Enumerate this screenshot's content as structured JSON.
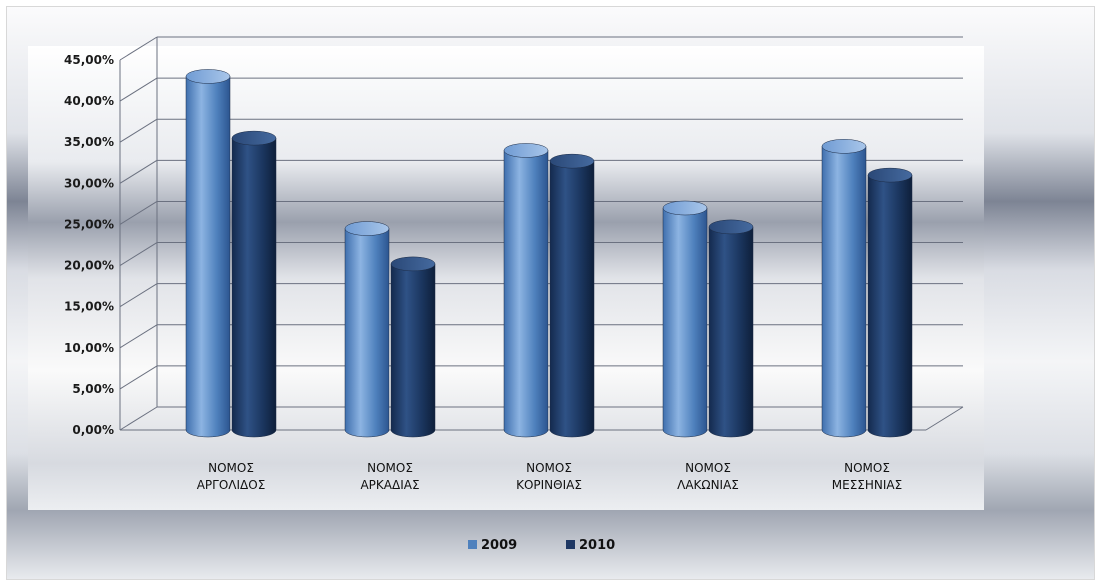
{
  "chart_data": {
    "type": "bar",
    "categories": [
      [
        "ΝΟΜΟΣ",
        "ΑΡΓΟΛΙΔΟΣ"
      ],
      [
        "ΝΟΜΟΣ",
        "ΑΡΚΑΔΙΑΣ"
      ],
      [
        "ΝΟΜΟΣ",
        "ΚΟΡΙΝΘΙΑΣ"
      ],
      [
        "ΝΟΜΟΣ",
        "ΛΑΚΩΝΙΑΣ"
      ],
      [
        "ΝΟΜΟΣ",
        "ΜΕΣΣΗΝΙΑΣ"
      ]
    ],
    "series": [
      {
        "name": "2009",
        "values": [
          43.0,
          24.5,
          34.0,
          27.0,
          34.5
        ],
        "color": "#4f81bd"
      },
      {
        "name": "2010",
        "values": [
          35.5,
          20.2,
          32.7,
          24.7,
          31.0
        ],
        "color": "#1f3864"
      }
    ],
    "yticks": [
      "0,00%",
      "5,00%",
      "10,00%",
      "15,00%",
      "20,00%",
      "25,00%",
      "30,00%",
      "35,00%",
      "40,00%",
      "45,00%"
    ],
    "ylim": [
      0,
      45
    ],
    "style": "3d-cylinder",
    "grid": true,
    "legend_position": "bottom",
    "title": "",
    "xlabel": "",
    "ylabel": ""
  }
}
